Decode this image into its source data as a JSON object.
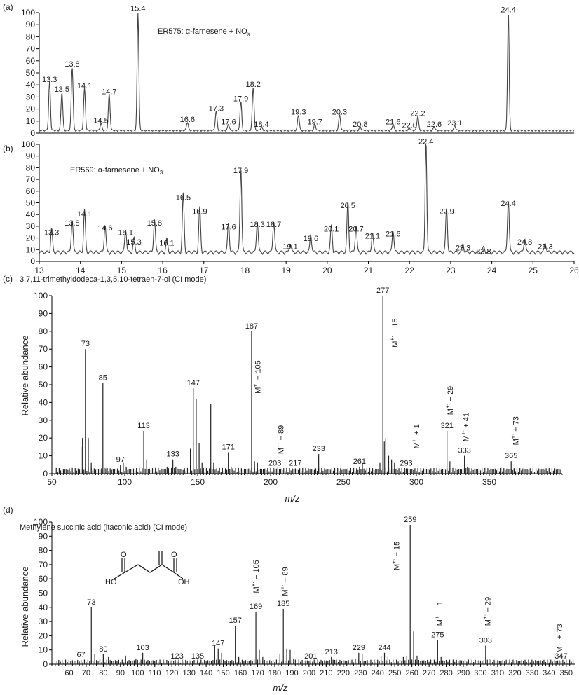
{
  "chart_data": [
    {
      "type": "line",
      "panel": "(a)",
      "annotation": "ER575: α-farnesene + NO",
      "annotation_sub": "x",
      "xlim": [
        13,
        26
      ],
      "ylim": [
        0,
        100
      ],
      "yticks": [
        0,
        10,
        20,
        30,
        40,
        50,
        60,
        70,
        80,
        90,
        100
      ],
      "peaks": [
        {
          "rt": 13.25,
          "h": 40,
          "label": "13.3"
        },
        {
          "rt": 13.55,
          "h": 32,
          "label": "13.5"
        },
        {
          "rt": 13.8,
          "h": 53,
          "label": "13.8"
        },
        {
          "rt": 14.1,
          "h": 35,
          "label": "14.1"
        },
        {
          "rt": 14.5,
          "h": 6,
          "label": "14.5"
        },
        {
          "rt": 14.7,
          "h": 30,
          "label": "14.7"
        },
        {
          "rt": 15.4,
          "h": 99,
          "label": "15.4"
        },
        {
          "rt": 16.6,
          "h": 7,
          "label": "16.6"
        },
        {
          "rt": 17.3,
          "h": 16,
          "label": "17.3"
        },
        {
          "rt": 17.6,
          "h": 5,
          "label": "17.6"
        },
        {
          "rt": 17.9,
          "h": 24,
          "label": "17.9"
        },
        {
          "rt": 18.2,
          "h": 36,
          "label": "18.2"
        },
        {
          "rt": 18.4,
          "h": 3,
          "label": "18.4"
        },
        {
          "rt": 19.3,
          "h": 13,
          "label": "19.3"
        },
        {
          "rt": 19.7,
          "h": 5,
          "label": "19.7"
        },
        {
          "rt": 20.3,
          "h": 13,
          "label": "20.3"
        },
        {
          "rt": 20.8,
          "h": 3,
          "label": "20.8"
        },
        {
          "rt": 21.6,
          "h": 5,
          "label": "21.6"
        },
        {
          "rt": 22.0,
          "h": 2,
          "label": "22.0"
        },
        {
          "rt": 22.2,
          "h": 12,
          "label": "22.2"
        },
        {
          "rt": 22.6,
          "h": 3,
          "label": "22.6"
        },
        {
          "rt": 23.1,
          "h": 4,
          "label": "23.1"
        },
        {
          "rt": 24.4,
          "h": 98,
          "label": "24.4"
        }
      ]
    },
    {
      "type": "line",
      "panel": "(b)",
      "annotation": "ER569: α-farnesene + NO",
      "annotation_sub": "3",
      "xlim": [
        13,
        26
      ],
      "ylim": [
        0,
        100
      ],
      "xticks": [
        13,
        14,
        15,
        16,
        17,
        18,
        19,
        20,
        21,
        22,
        23,
        24,
        25,
        26
      ],
      "yticks": [
        0,
        10,
        20,
        30,
        40,
        50,
        60,
        70,
        80,
        90,
        100
      ],
      "peaks": [
        {
          "rt": 13.3,
          "h": 20,
          "label": "13.3"
        },
        {
          "rt": 13.8,
          "h": 28,
          "label": "13.8"
        },
        {
          "rt": 14.1,
          "h": 36,
          "label": "14.1"
        },
        {
          "rt": 14.6,
          "h": 24,
          "label": "14.6"
        },
        {
          "rt": 15.1,
          "h": 20,
          "label": "15.1"
        },
        {
          "rt": 15.3,
          "h": 12,
          "label": "15.3"
        },
        {
          "rt": 15.8,
          "h": 28,
          "label": "15.8"
        },
        {
          "rt": 16.1,
          "h": 11,
          "label": "16.1"
        },
        {
          "rt": 16.5,
          "h": 50,
          "label": "16.5"
        },
        {
          "rt": 16.9,
          "h": 38,
          "label": "16.9"
        },
        {
          "rt": 17.6,
          "h": 25,
          "label": "17.6"
        },
        {
          "rt": 17.9,
          "h": 73,
          "label": "17.9"
        },
        {
          "rt": 18.3,
          "h": 27,
          "label": "18.3"
        },
        {
          "rt": 18.7,
          "h": 27,
          "label": "18.7"
        },
        {
          "rt": 19.1,
          "h": 8,
          "label": "19.1"
        },
        {
          "rt": 19.6,
          "h": 15,
          "label": "19.6"
        },
        {
          "rt": 20.1,
          "h": 23,
          "label": "20.1"
        },
        {
          "rt": 20.5,
          "h": 43,
          "label": "20.5"
        },
        {
          "rt": 20.7,
          "h": 23,
          "label": "20.7"
        },
        {
          "rt": 21.1,
          "h": 17,
          "label": "21.1"
        },
        {
          "rt": 21.6,
          "h": 19,
          "label": "21.6"
        },
        {
          "rt": 22.4,
          "h": 98,
          "label": "22.4"
        },
        {
          "rt": 22.9,
          "h": 38,
          "label": "22.9"
        },
        {
          "rt": 23.3,
          "h": 7,
          "label": "23.3"
        },
        {
          "rt": 23.8,
          "h": 4,
          "label": "23.8"
        },
        {
          "rt": 24.4,
          "h": 45,
          "label": "24.4"
        },
        {
          "rt": 24.8,
          "h": 12,
          "label": "24.8"
        },
        {
          "rt": 25.3,
          "h": 8,
          "label": "25.3"
        }
      ]
    },
    {
      "type": "bar",
      "panel": "(c)",
      "title": "3,7,11-trimethyldodeca-1,3,5,10-tetraen-7-ol (CI mode)",
      "xlabel": "m/z",
      "ylabel": "Relative abundance",
      "xlim": [
        50,
        400
      ],
      "ylim": [
        0,
        100
      ],
      "xticks": [
        50,
        100,
        150,
        200,
        250,
        300,
        350
      ],
      "yticks": [
        0,
        10,
        20,
        30,
        40,
        50,
        60,
        70,
        80,
        90,
        100
      ],
      "peaks": [
        {
          "mz": 73,
          "y": 70,
          "label": "73"
        },
        {
          "mz": 85,
          "y": 51,
          "label": "85"
        },
        {
          "mz": 97,
          "y": 5,
          "label": "97"
        },
        {
          "mz": 113,
          "y": 24,
          "label": "113"
        },
        {
          "mz": 133,
          "y": 8,
          "label": "133"
        },
        {
          "mz": 147,
          "y": 48,
          "label": "147"
        },
        {
          "mz": 171,
          "y": 12,
          "label": "171"
        },
        {
          "mz": 187,
          "y": 80,
          "label": "187"
        },
        {
          "mz": 203,
          "y": 3,
          "label": "203"
        },
        {
          "mz": 217,
          "y": 3,
          "label": "217"
        },
        {
          "mz": 233,
          "y": 11,
          "label": "233"
        },
        {
          "mz": 261,
          "y": 4,
          "label": "261"
        },
        {
          "mz": 277,
          "y": 100,
          "label": "277"
        },
        {
          "mz": 293,
          "y": 3,
          "label": "293"
        },
        {
          "mz": 321,
          "y": 24,
          "label": "321"
        },
        {
          "mz": 333,
          "y": 10,
          "label": "333"
        },
        {
          "mz": 365,
          "y": 7,
          "label": "365"
        }
      ],
      "minor_peaks": [
        {
          "mz": 58,
          "y": 2
        },
        {
          "mz": 62,
          "y": 3
        },
        {
          "mz": 70,
          "y": 15
        },
        {
          "mz": 71,
          "y": 20
        },
        {
          "mz": 75,
          "y": 20
        },
        {
          "mz": 77,
          "y": 6
        },
        {
          "mz": 87,
          "y": 3
        },
        {
          "mz": 99,
          "y": 6
        },
        {
          "mz": 101,
          "y": 4
        },
        {
          "mz": 115,
          "y": 8
        },
        {
          "mz": 129,
          "y": 4
        },
        {
          "mz": 135,
          "y": 4
        },
        {
          "mz": 145,
          "y": 14
        },
        {
          "mz": 149,
          "y": 42
        },
        {
          "mz": 151,
          "y": 17
        },
        {
          "mz": 153,
          "y": 6
        },
        {
          "mz": 159,
          "y": 39
        },
        {
          "mz": 161,
          "y": 6
        },
        {
          "mz": 173,
          "y": 4
        },
        {
          "mz": 189,
          "y": 7
        },
        {
          "mz": 191,
          "y": 6
        },
        {
          "mz": 205,
          "y": 4
        },
        {
          "mz": 263,
          "y": 6
        },
        {
          "mz": 275,
          "y": 6
        },
        {
          "mz": 278,
          "y": 18
        },
        {
          "mz": 279,
          "y": 20
        },
        {
          "mz": 281,
          "y": 10
        },
        {
          "mz": 283,
          "y": 8
        },
        {
          "mz": 285,
          "y": 6
        },
        {
          "mz": 323,
          "y": 7
        },
        {
          "mz": 335,
          "y": 4
        },
        {
          "mz": 367,
          "y": 3
        }
      ],
      "annotations": [
        {
          "text": "M",
          "sup": "+·",
          "tail": " − 105",
          "mz": 191,
          "y": 45
        },
        {
          "text": "M",
          "sup": "+·",
          "tail": " − 89",
          "mz": 207,
          "y": 11
        },
        {
          "text": "M",
          "sup": "+·",
          "tail": " − 15",
          "mz": 285,
          "y": 71
        },
        {
          "text": "M",
          "sup": "+·",
          "tail": " + 1",
          "mz": 300,
          "y": 14
        },
        {
          "text": "M",
          "sup": "+·",
          "tail": " + 29",
          "mz": 323,
          "y": 33
        },
        {
          "text": "M",
          "sup": "+·",
          "tail": " + 41",
          "mz": 334,
          "y": 18
        },
        {
          "text": "M",
          "sup": "+·",
          "tail": " + 73",
          "mz": 368,
          "y": 16
        }
      ]
    },
    {
      "type": "bar",
      "panel": "(d)",
      "title": "Methylene succinic acid (itaconic acid) (CI mode)",
      "xlabel": "m/z",
      "ylabel": "Relative abundance",
      "xlim": [
        50,
        355
      ],
      "ylim": [
        0,
        100
      ],
      "xticks": [
        60,
        70,
        80,
        90,
        100,
        110,
        120,
        130,
        140,
        150,
        160,
        170,
        180,
        190,
        200,
        210,
        220,
        230,
        240,
        250,
        260,
        270,
        280,
        290,
        300,
        310,
        320,
        330,
        340,
        350
      ],
      "yticks": [
        0,
        10,
        20,
        30,
        40,
        50,
        60,
        70,
        80,
        90,
        100
      ],
      "structure_labels": [
        "HO",
        "OH",
        "O",
        "O"
      ],
      "peaks": [
        {
          "mz": 67,
          "y": 3,
          "label": "67"
        },
        {
          "mz": 73,
          "y": 40,
          "label": "73"
        },
        {
          "mz": 80,
          "y": 7,
          "label": "80"
        },
        {
          "mz": 103,
          "y": 8,
          "label": "103"
        },
        {
          "mz": 123,
          "y": 2,
          "label": "123"
        },
        {
          "mz": 135,
          "y": 2,
          "label": "135"
        },
        {
          "mz": 147,
          "y": 11,
          "label": "147"
        },
        {
          "mz": 157,
          "y": 27,
          "label": "157"
        },
        {
          "mz": 169,
          "y": 37,
          "label": "169"
        },
        {
          "mz": 185,
          "y": 39,
          "label": "185"
        },
        {
          "mz": 201,
          "y": 2,
          "label": "201"
        },
        {
          "mz": 213,
          "y": 5,
          "label": "213"
        },
        {
          "mz": 229,
          "y": 8,
          "label": "229"
        },
        {
          "mz": 244,
          "y": 8,
          "label": "244"
        },
        {
          "mz": 259,
          "y": 98,
          "label": "259"
        },
        {
          "mz": 275,
          "y": 17,
          "label": "275"
        },
        {
          "mz": 303,
          "y": 13,
          "label": "303"
        },
        {
          "mz": 347,
          "y": 2,
          "label": "347"
        }
      ],
      "minor_peaks": [
        {
          "mz": 75,
          "y": 7
        },
        {
          "mz": 78,
          "y": 4
        },
        {
          "mz": 83,
          "y": 5
        },
        {
          "mz": 93,
          "y": 6
        },
        {
          "mz": 99,
          "y": 4
        },
        {
          "mz": 145,
          "y": 13
        },
        {
          "mz": 149,
          "y": 8
        },
        {
          "mz": 159,
          "y": 5
        },
        {
          "mz": 171,
          "y": 10
        },
        {
          "mz": 173,
          "y": 5
        },
        {
          "mz": 183,
          "y": 7
        },
        {
          "mz": 187,
          "y": 11
        },
        {
          "mz": 189,
          "y": 10
        },
        {
          "mz": 191,
          "y": 4
        },
        {
          "mz": 215,
          "y": 3
        },
        {
          "mz": 227,
          "y": 4
        },
        {
          "mz": 231,
          "y": 7
        },
        {
          "mz": 242,
          "y": 6
        },
        {
          "mz": 246,
          "y": 5
        },
        {
          "mz": 255,
          "y": 5
        },
        {
          "mz": 257,
          "y": 6
        },
        {
          "mz": 261,
          "y": 23
        },
        {
          "mz": 263,
          "y": 6
        },
        {
          "mz": 277,
          "y": 5
        },
        {
          "mz": 305,
          "y": 4
        }
      ],
      "annotations": [
        {
          "text": "M",
          "sup": "+·",
          "tail": " − 105",
          "mz": 169,
          "y": 50
        },
        {
          "text": "M",
          "sup": "+·",
          "tail": " − 89",
          "mz": 186,
          "y": 48
        },
        {
          "text": "M",
          "sup": "+·",
          "tail": " − 15",
          "mz": 251,
          "y": 66
        },
        {
          "text": "M",
          "sup": "+·",
          "tail": " + 1",
          "mz": 276,
          "y": 27
        },
        {
          "text": "M",
          "sup": "+·",
          "tail": " + 29",
          "mz": 304,
          "y": 27
        },
        {
          "text": "M",
          "sup": "+·",
          "tail": " + 73",
          "mz": 346,
          "y": 8
        }
      ]
    }
  ]
}
